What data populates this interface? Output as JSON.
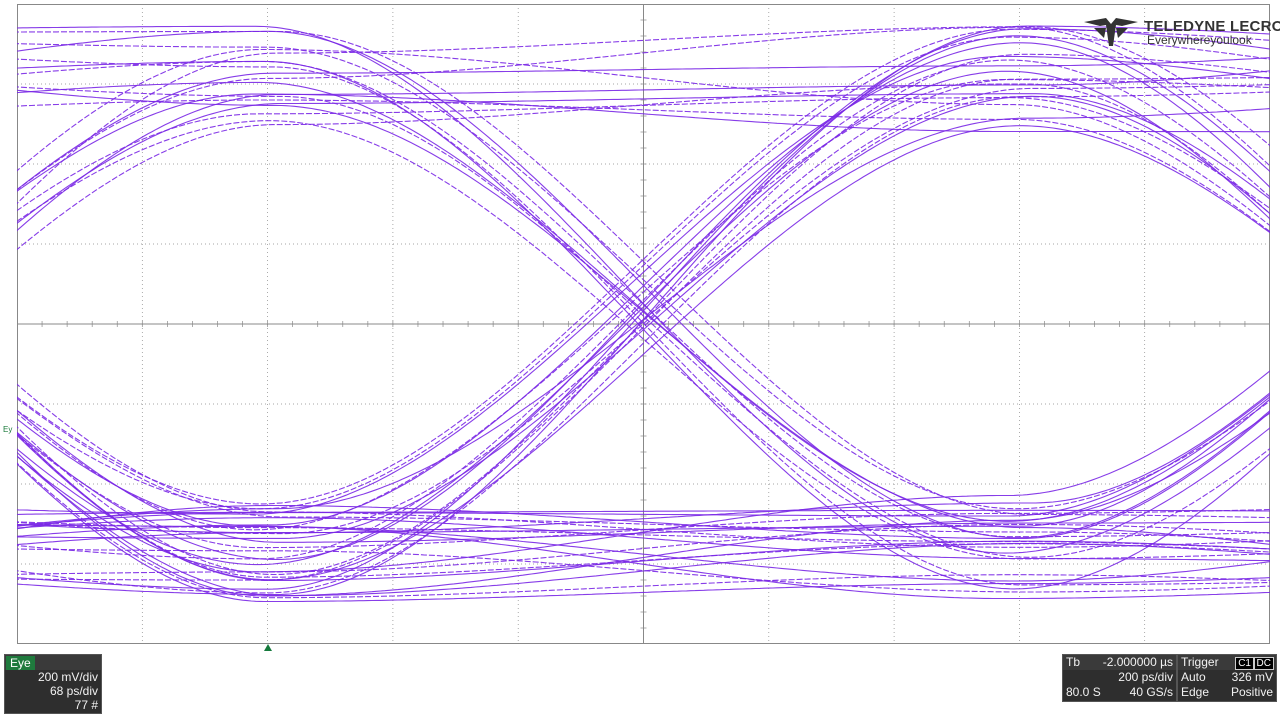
{
  "brand": {
    "name": "TELEDYNE LECROY",
    "tagline": "Everywhereyoulook"
  },
  "waveform": {
    "trace_color": "#7a28e6",
    "grid_color": "#888888",
    "channel_marker": "Ey"
  },
  "eye_panel": {
    "tag": "Eye",
    "vertical_scale": "200 mV/div",
    "horizontal_scale": "68 ps/div",
    "count": "77 #"
  },
  "timebase_panel": {
    "label": "Tb",
    "delay": "-2.000000 µs",
    "time_per_div": "200 ps/div",
    "record": "80.0 S",
    "sample_rate": "40 GS/s"
  },
  "trigger_panel": {
    "label": "Trigger",
    "channel": "C1",
    "coupling": "DC",
    "mode": "Auto",
    "level": "326 mV",
    "type": "Edge",
    "slope": "Positive"
  }
}
